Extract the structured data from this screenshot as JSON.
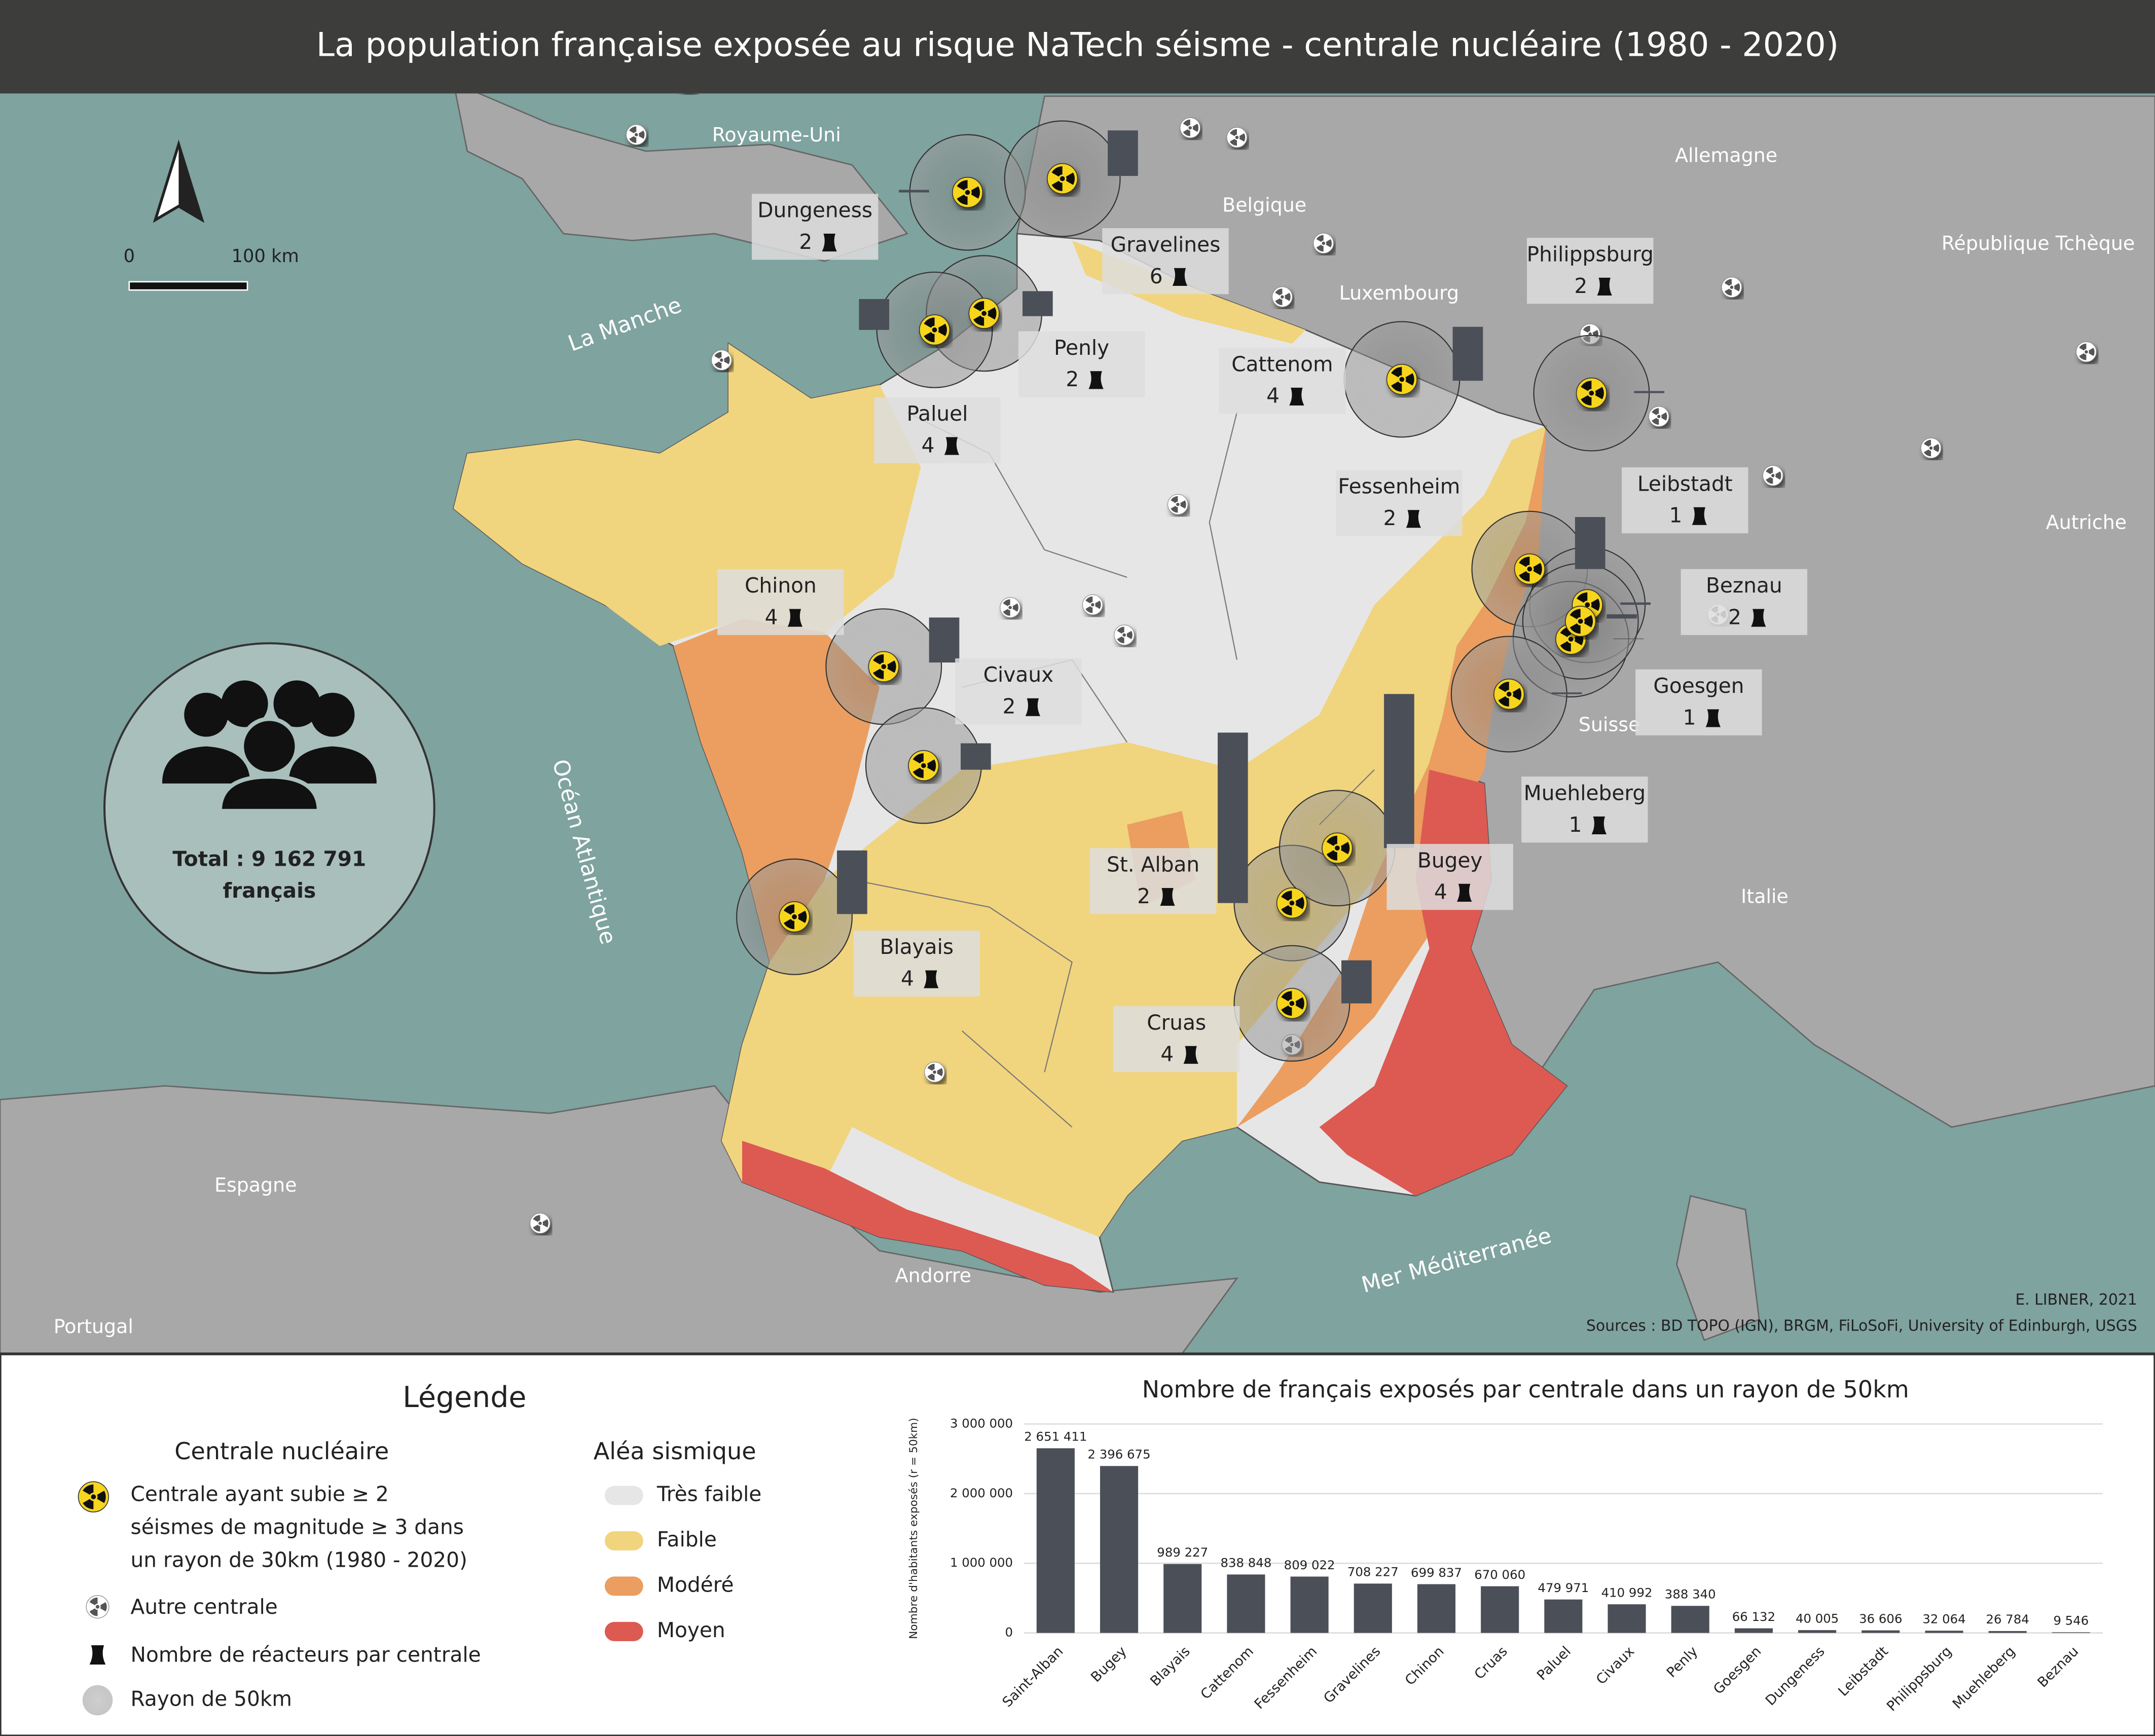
{
  "title": "La population française exposée au risque NaTech séisme - centrale nucléaire (1980 - 2020)",
  "map": {
    "countries": [
      "Royaume-Uni",
      "Belgique",
      "Allemagne",
      "Luxembourg",
      "République Tchèque",
      "Autriche",
      "Suisse",
      "Italie",
      "Espagne",
      "Portugal",
      "Andorre"
    ],
    "seas": [
      "La Manche",
      "Océan Atlantique",
      "Mer Méditerranée"
    ],
    "scale": {
      "start": "0",
      "end": "100 km"
    },
    "credit": "E. LIBNER, 2021",
    "sources": "Sources : BD TOPO (IGN),  BRGM, FiLoSoFi,  University of Edinburgh,  USGS"
  },
  "plants": [
    {
      "name": "Dungeness",
      "reactors": 2
    },
    {
      "name": "Gravelines",
      "reactors": 6
    },
    {
      "name": "Penly",
      "reactors": 2
    },
    {
      "name": "Paluel",
      "reactors": 4
    },
    {
      "name": "Cattenom",
      "reactors": 4
    },
    {
      "name": "Philippsburg",
      "reactors": 2
    },
    {
      "name": "Fessenheim",
      "reactors": 2
    },
    {
      "name": "Leibstadt",
      "reactors": 1
    },
    {
      "name": "Beznau",
      "reactors": 2
    },
    {
      "name": "Goesgen",
      "reactors": 1
    },
    {
      "name": "Muehleberg",
      "reactors": 1
    },
    {
      "name": "Chinon",
      "reactors": 4
    },
    {
      "name": "Civaux",
      "reactors": 2
    },
    {
      "name": "Blayais",
      "reactors": 4
    },
    {
      "name": "St. Alban",
      "reactors": 2
    },
    {
      "name": "Bugey",
      "reactors": 4
    },
    {
      "name": "Cruas",
      "reactors": 4
    }
  ],
  "total": {
    "label": "Total : 9 162 791",
    "unit": "français"
  },
  "legend": {
    "title": "Légende",
    "plants_title": "Centrale nucléaire",
    "seismic_plant": [
      "Centrale ayant subie ≥ 2",
      "séismes de magnitude ≥ 3 dans",
      "un rayon de 30km (1980 - 2020)"
    ],
    "other_plant": "Autre centrale",
    "reactors": "Nombre de réacteurs par centrale",
    "radius": "Rayon de 50km",
    "hazard_title": "Aléa sismique",
    "hazard": [
      {
        "name": "Très faible",
        "color": "#e6e6e6"
      },
      {
        "name": "Faible",
        "color": "#f1d47e"
      },
      {
        "name": "Modéré",
        "color": "#eb9e5f"
      },
      {
        "name": "Moyen",
        "color": "#dc5a52"
      }
    ]
  },
  "chart_data": {
    "type": "bar",
    "title": "Nombre de français exposés par centrale dans un rayon de 50km",
    "y_label": "Nombre d'habitants exposés (r = 50km)",
    "categories": [
      "Saint-Alban",
      "Bugey",
      "Blayais",
      "Cattenom",
      "Fessenheim",
      "Gravelines",
      "Chinon",
      "Cruas",
      "Paluel",
      "Civaux",
      "Penly",
      "Goesgen",
      "Dungeness",
      "Leibstadt",
      "Philippsburg",
      "Muehleberg",
      "Beznau"
    ],
    "values": [
      2651411,
      2396675,
      989227,
      838848,
      809022,
      708227,
      699837,
      670060,
      479971,
      410992,
      388340,
      66132,
      40005,
      36606,
      32064,
      26784,
      9546
    ],
    "value_labels": [
      "2 651 411",
      "2 396 675",
      "989 227",
      "838 848",
      "809 022",
      "708 227",
      "699 837",
      "670 060",
      "479 971",
      "410 992",
      "388 340",
      "66 132",
      "40 005",
      "36 606",
      "32 064",
      "26 784",
      "9 546"
    ],
    "color": "#4b4f57",
    "ylim": [
      0,
      3000000
    ],
    "yticks": [
      0,
      {
        "value": 1000000,
        "label": "1 000 000"
      },
      {
        "value": 2000000,
        "label": "2 000 000"
      },
      {
        "value": 3000000,
        "label": "3 000 000"
      }
    ],
    "grid": true
  }
}
